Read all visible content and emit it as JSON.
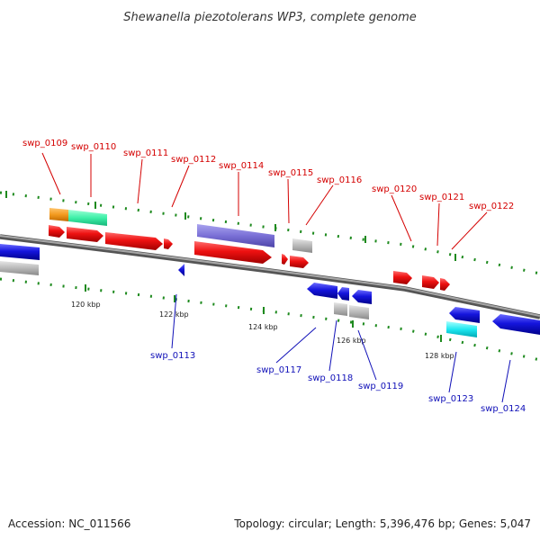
{
  "title": "Shewanella piezotolerans WP3, complete genome",
  "footer": {
    "accession": "Accession: NC_011566",
    "summary": "Topology: circular; Length: 5,396,476 bp; Genes: 5,047"
  },
  "scale_labels": [
    "120 kbp",
    "122 kbp",
    "124 kbp",
    "126 kbp",
    "128 kbp"
  ],
  "gene_labels": {
    "top": [
      "swp_0109",
      "swp_0110",
      "swp_0111",
      "swp_0112",
      "swp_0114",
      "swp_0115",
      "swp_0116",
      "swp_0120",
      "swp_0121",
      "swp_0122"
    ],
    "bottom": [
      "swp_0113",
      "swp_0117",
      "swp_0118",
      "swp_0119",
      "swp_0123",
      "swp_0124"
    ]
  },
  "colors": {
    "forward_cds": "#ee1111",
    "reverse_cds": "#1515dd",
    "pseudo_gray": "#b8b8b8",
    "top_label": "#d40000",
    "bottom_label": "#1010b8",
    "tick": "#1e8a1e",
    "backbone": "#7a7a7a"
  }
}
